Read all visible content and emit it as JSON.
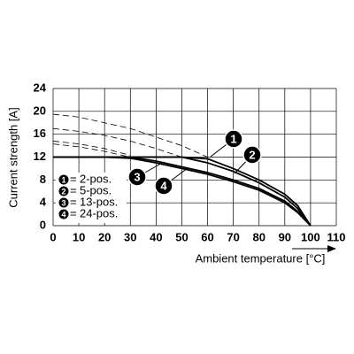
{
  "chart_data": {
    "type": "line",
    "xlabel": "Ambient temperature [°C]",
    "ylabel": "Current strength [A]",
    "x": [
      0,
      10,
      20,
      30,
      40,
      50,
      60,
      70,
      80,
      90,
      95,
      100
    ],
    "xlim": [
      0,
      110
    ],
    "xticks": [
      0,
      10,
      20,
      30,
      40,
      50,
      60,
      70,
      80,
      90,
      100,
      110
    ],
    "ylim": [
      0,
      24
    ],
    "yticks": [
      0,
      4,
      8,
      12,
      16,
      20,
      24
    ],
    "grid": true,
    "legend_separator": "=",
    "series": [
      {
        "label": "1",
        "name": "2-pos.",
        "color": "#000000",
        "values": [
          12,
          12,
          12,
          12,
          12,
          12,
          11.7,
          10,
          8,
          5.5,
          3.5,
          0
        ],
        "dashed_values": [
          19.5,
          19,
          18,
          17,
          15.5,
          14,
          12,
          null,
          null,
          null,
          null,
          null
        ]
      },
      {
        "label": "2",
        "name": "5-pos.",
        "color": "#000000",
        "values": [
          12,
          12,
          12,
          12,
          12,
          12,
          11,
          9.5,
          7.5,
          5,
          3,
          0
        ],
        "dashed_values": [
          17,
          16.5,
          15.8,
          14.8,
          13.5,
          12,
          null,
          null,
          null,
          null,
          null,
          null
        ]
      },
      {
        "label": "3",
        "name": "13-pos.",
        "color": "#000000",
        "values": [
          12,
          12,
          12,
          12,
          11.3,
          10.3,
          9.3,
          8,
          6.5,
          4.3,
          2.5,
          0
        ],
        "dashed_values": [
          14.8,
          14.3,
          13.5,
          12.3,
          null,
          null,
          null,
          null,
          null,
          null,
          null,
          null
        ]
      },
      {
        "label": "4",
        "name": "24-pos.",
        "color": "#000000",
        "values": [
          12,
          12,
          12,
          11.8,
          11,
          10,
          9,
          7.7,
          6.2,
          4,
          2.3,
          0
        ],
        "dashed_values": [
          14.3,
          13.8,
          13,
          12,
          null,
          null,
          null,
          null,
          null,
          null,
          null,
          null
        ]
      }
    ]
  }
}
